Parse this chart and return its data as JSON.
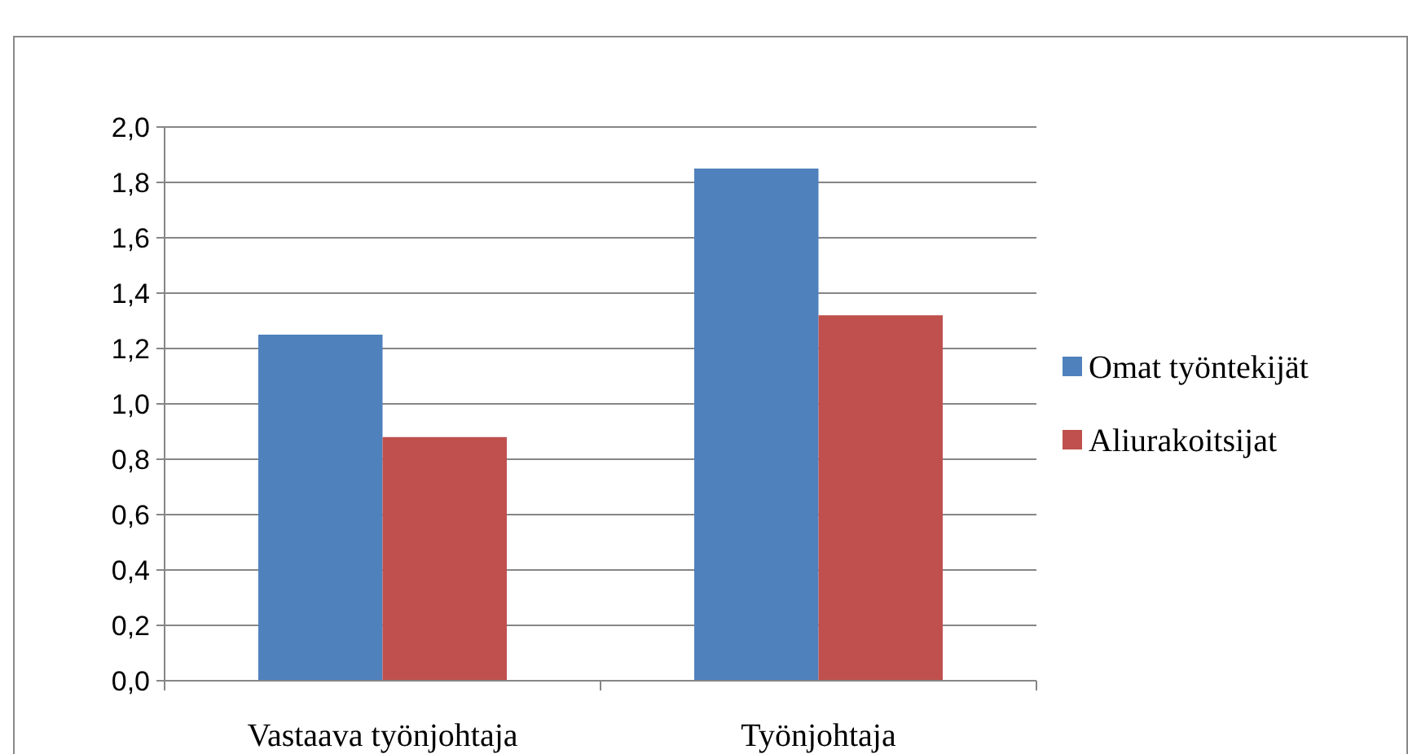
{
  "chart_data": {
    "type": "bar",
    "categories": [
      "Vastaava työnjohtaja",
      "Työnjohtaja"
    ],
    "series": [
      {
        "name": "Omat työntekijät",
        "color": "#4f81bd",
        "values": [
          1.25,
          1.85
        ]
      },
      {
        "name": "Aliurakoitsijat",
        "color": "#c0504d",
        "values": [
          0.88,
          1.32
        ]
      }
    ],
    "ylim": [
      0,
      2
    ],
    "yticks": [
      {
        "value": 0,
        "label": "0,0"
      },
      {
        "value": 0.2,
        "label": "0,2"
      },
      {
        "value": 0.4,
        "label": "0,4"
      },
      {
        "value": 0.6,
        "label": "0,6"
      },
      {
        "value": 0.8,
        "label": "0,8"
      },
      {
        "value": 1,
        "label": "1,0"
      },
      {
        "value": 1.2,
        "label": "1,2"
      },
      {
        "value": 1.4,
        "label": "1,4"
      },
      {
        "value": 1.6,
        "label": "1,6"
      },
      {
        "value": 1.8,
        "label": "1,8"
      },
      {
        "value": 2,
        "label": "2,0"
      }
    ],
    "grid": "y",
    "legend": "right"
  }
}
